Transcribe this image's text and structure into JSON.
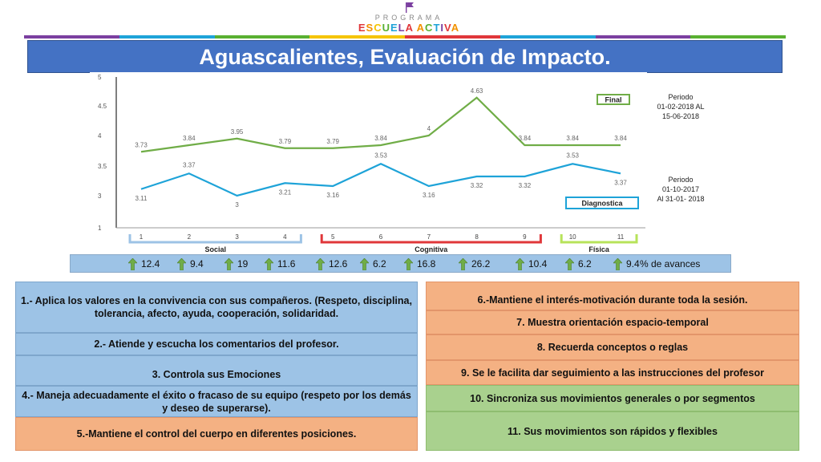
{
  "logo": {
    "program": "PROGRAMA",
    "brand_letters": [
      {
        "t": "E",
        "c": "#e0373a"
      },
      {
        "t": "S",
        "c": "#f29100"
      },
      {
        "t": "C",
        "c": "#f5c400"
      },
      {
        "t": "U",
        "c": "#59b031"
      },
      {
        "t": "E",
        "c": "#1ea3d8"
      },
      {
        "t": "L",
        "c": "#7b3fa0"
      },
      {
        "t": "A",
        "c": "#e0373a"
      },
      {
        "t": " ",
        "c": "#000"
      },
      {
        "t": "A",
        "c": "#f29100"
      },
      {
        "t": "C",
        "c": "#59b031"
      },
      {
        "t": "T",
        "c": "#1ea3d8"
      },
      {
        "t": "I",
        "c": "#7b3fa0"
      },
      {
        "t": "V",
        "c": "#e0373a"
      },
      {
        "t": "A",
        "c": "#f29100"
      }
    ]
  },
  "stripe_colors": [
    "#7b3fa0",
    "#1ea3d8",
    "#59b031",
    "#f5c400",
    "#e0373a",
    "#1ea3d8",
    "#7b3fa0",
    "#59b031"
  ],
  "title": "Aguascalientes, Evaluación de Impacto.",
  "chart_data": {
    "type": "line",
    "x": [
      1,
      2,
      3,
      4,
      5,
      6,
      7,
      8,
      9,
      10,
      11
    ],
    "ylim": [
      1,
      5
    ],
    "yticks": [
      "1",
      "3",
      "3.5",
      "4",
      "4.5",
      "5"
    ],
    "series": [
      {
        "name": "Final",
        "color": "#70ad47",
        "values": [
          3.73,
          3.84,
          3.95,
          3.79,
          3.79,
          3.84,
          4,
          4.63,
          3.84,
          3.84,
          3.84
        ],
        "labels": [
          "3.73",
          "3.84",
          "3.95",
          "3.79",
          "3.79",
          "3.84",
          "4",
          "4.63",
          "3.84",
          "3.84",
          "3.84"
        ]
      },
      {
        "name": "Diagnostica",
        "color": "#1ea3d8",
        "values": [
          3.11,
          3.37,
          3,
          3.21,
          3.16,
          3.53,
          3.16,
          3.32,
          3.32,
          3.53,
          3.37
        ],
        "labels": [
          "3.11",
          "3.37",
          "3",
          "3.21",
          "3.16",
          "3.53",
          "3.16",
          "3.32",
          "3.32",
          "3.53",
          "3.37"
        ]
      }
    ],
    "groups": [
      {
        "name": "Social",
        "from": 1,
        "to": 4,
        "color": "#9dc3e6"
      },
      {
        "name": "Cognitiva",
        "from": 5,
        "to": 9,
        "color": "#e0373a"
      },
      {
        "name": "Física",
        "from": 10,
        "to": 11,
        "color": "#b7e35a"
      }
    ],
    "avances": [
      "12.4",
      "9.4",
      "19",
      "11.6",
      "12.6",
      "6.2",
      "16.8",
      "26.2",
      "10.4",
      "6.2",
      "9.4"
    ],
    "avances_label": "% de avances"
  },
  "periods": {
    "final": [
      "Periodo",
      "01-02-2018 AL",
      "15-06-2018"
    ],
    "diag": [
      "Periodo",
      "01-10-2017",
      "Al 31-01- 2018"
    ]
  },
  "items_left": [
    "1.- Aplica los valores en la convivencia con sus compañeros. (Respeto, disciplina, tolerancia, afecto, ayuda, cooperación, solidaridad.",
    "2.- Atiende y escucha los comentarios del profesor.",
    "3. Controla sus Emociones",
    "4.- Maneja adecuadamente el éxito o fracaso de su equipo (respeto por los demás y deseo de superarse).",
    "5.-Mantiene el control del cuerpo en diferentes posiciones."
  ],
  "items_right": [
    "6.-Mantiene el interés-motivación durante toda la sesión.",
    "7. Muestra orientación espacio-temporal",
    "8. Recuerda conceptos o reglas",
    "9. Se le facilita dar seguimiento a las instrucciones del profesor",
    "10. Sincroniza sus movimientos generales o por segmentos",
    "11. Sus movimientos son rápidos y flexibles"
  ]
}
